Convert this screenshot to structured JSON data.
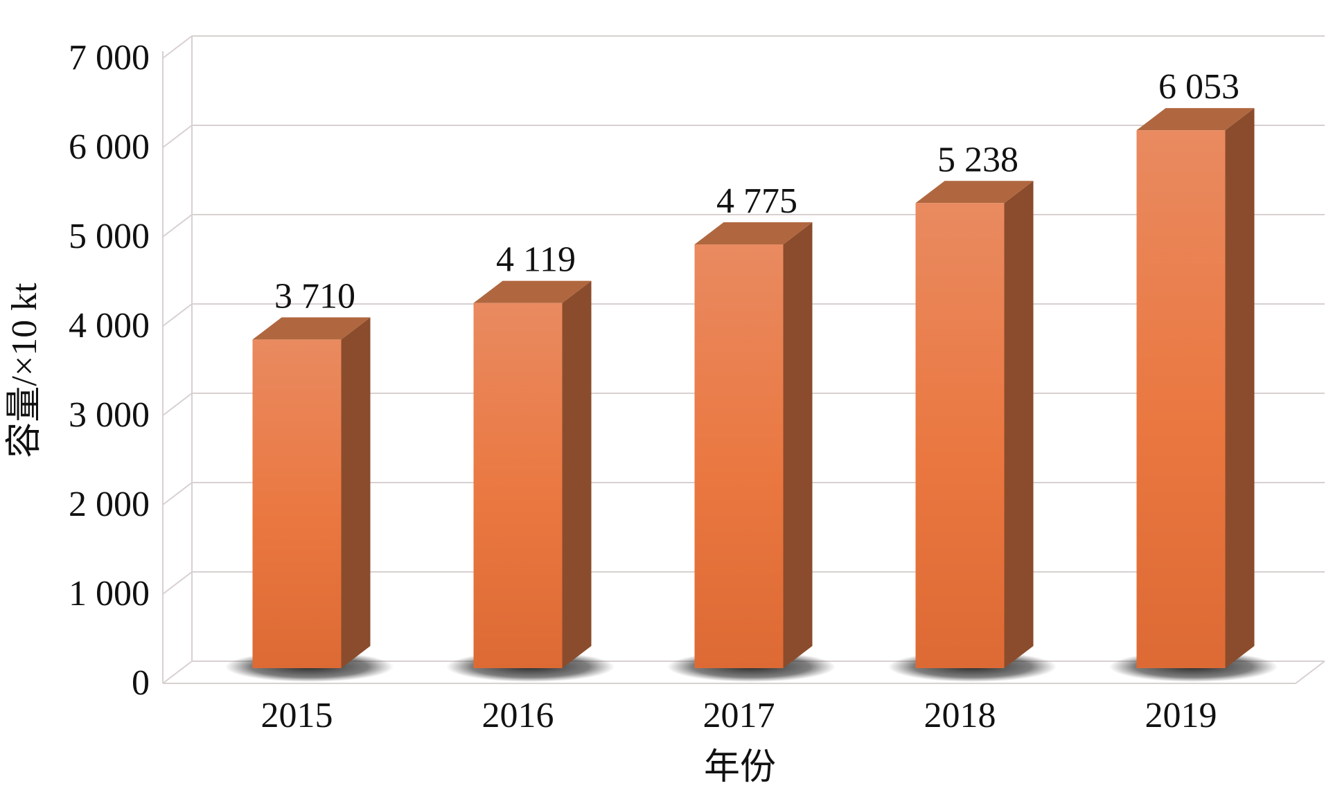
{
  "chart_data": {
    "type": "bar",
    "style": "3d-column",
    "categories": [
      "2015",
      "2016",
      "2017",
      "2018",
      "2019"
    ],
    "values": [
      3710,
      4119,
      4775,
      5238,
      6053
    ],
    "value_labels": [
      "3 710",
      "4 119",
      "4 775",
      "5 238",
      "6 053"
    ],
    "xlabel": "年份",
    "ylabel": "容量/×10 kt",
    "ylim": [
      0,
      7000
    ],
    "yticks": [
      0,
      1000,
      2000,
      3000,
      4000,
      5000,
      6000,
      7000
    ],
    "ytick_labels": [
      "0",
      "1 000",
      "2 000",
      "3 000",
      "4 000",
      "5 000",
      "6 000",
      "7 000"
    ],
    "grid": true,
    "legend": "none",
    "colors": {
      "bar_front": "#e8743c",
      "bar_front_light": "#e98a60",
      "bar_side": "#8a4c2c",
      "bar_top": "#b0673f",
      "grid": "#d8d0d0",
      "shadow": "#2a2a2a"
    }
  }
}
